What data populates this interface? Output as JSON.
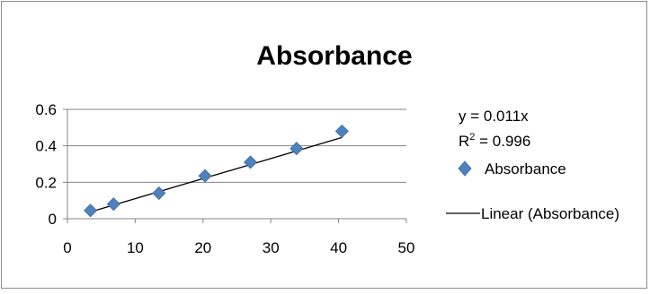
{
  "chart_data": {
    "type": "scatter",
    "title": "Absorbance",
    "xlabel": "",
    "ylabel": "",
    "xlim": [
      0,
      50
    ],
    "ylim": [
      0,
      0.6
    ],
    "x_ticks": [
      "0",
      "10",
      "20",
      "30",
      "40",
      "50"
    ],
    "y_ticks": [
      "0",
      "0.2",
      "0.4",
      "0.6"
    ],
    "grid": "horizontal",
    "legend_position": "right",
    "series": [
      {
        "name": "Absorbance",
        "marker": "diamond",
        "color": "#4f81bd",
        "x": [
          3.4,
          6.8,
          13.5,
          20.3,
          27.0,
          33.8,
          40.5
        ],
        "y": [
          0.045,
          0.08,
          0.14,
          0.235,
          0.31,
          0.385,
          0.48
        ]
      }
    ],
    "trendline": {
      "name": "Linear (Absorbance)",
      "type": "linear",
      "slope": 0.011,
      "x_range": [
        3.4,
        40.5
      ],
      "color": "#000000",
      "equation": "y = 0.011x",
      "r_squared_label": "R",
      "r_squared_sup": "2",
      "r_squared_value": " = 0.996"
    }
  }
}
